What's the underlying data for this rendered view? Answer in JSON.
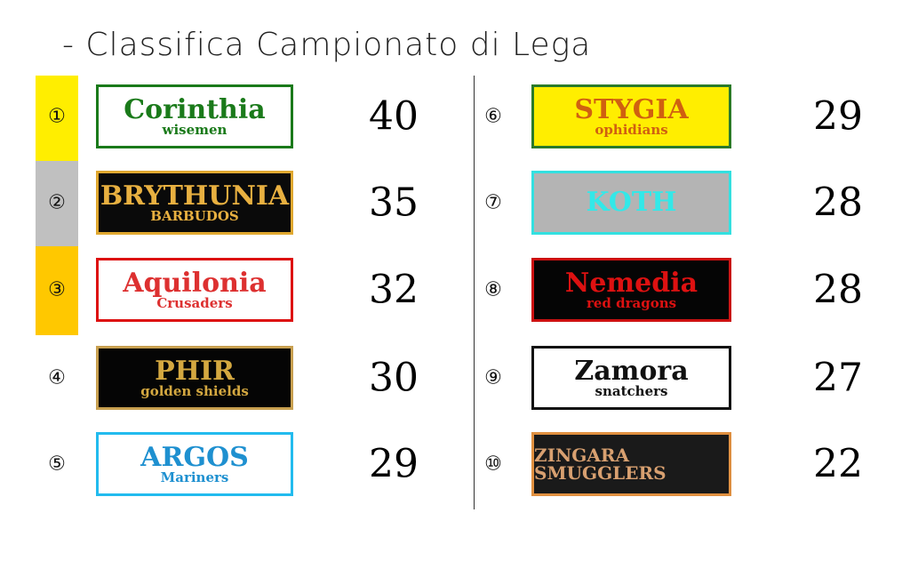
{
  "title": "- Classifica Campionato di Lega",
  "rank_colors": {
    "1": "#ffee00",
    "2": "#c0c0c0",
    "3": "#ffc800"
  },
  "standings": [
    {
      "rank": "①",
      "team": "Corinthia",
      "subtitle": "wisemen",
      "points": "40",
      "border": "#1a7a1a",
      "bg": "#ffffff",
      "color": "#1a7a1a"
    },
    {
      "rank": "②",
      "team": "BRYTHUNIA",
      "subtitle": "BARBUDOS",
      "points": "35",
      "border": "#e0a830",
      "bg": "#0a0a0a",
      "color": "#e8b040"
    },
    {
      "rank": "③",
      "team": "Aquilonia",
      "subtitle": "Crusaders",
      "points": "32",
      "border": "#dd1111",
      "bg": "#ffffff",
      "color": "#dd3030"
    },
    {
      "rank": "④",
      "team": "PHIR",
      "subtitle": "golden shields",
      "points": "30",
      "border": "#c8a050",
      "bg": "#050505",
      "color": "#d4a840"
    },
    {
      "rank": "⑤",
      "team": "ARGOS",
      "subtitle": "Mariners",
      "points": "29",
      "border": "#22bbee",
      "bg": "#ffffff",
      "color": "#1e90d0"
    },
    {
      "rank": "⑥",
      "team": "STYGIA",
      "subtitle": "ophidians",
      "points": "29",
      "border": "#2a7a2a",
      "bg": "#ffee00",
      "color": "#d06010"
    },
    {
      "rank": "⑦",
      "team": "KOTH",
      "subtitle": "",
      "points": "28",
      "border": "#33e0e0",
      "bg": "#b4b4b4",
      "color": "#33e8e8"
    },
    {
      "rank": "⑧",
      "team": "Nemedia",
      "subtitle": "red dragons",
      "points": "28",
      "border": "#cc1111",
      "bg": "#050505",
      "color": "#dd1111"
    },
    {
      "rank": "⑨",
      "team": "Zamora",
      "subtitle": "snatchers",
      "points": "27",
      "border": "#111111",
      "bg": "#ffffff",
      "color": "#111111"
    },
    {
      "rank": "⑩",
      "team": "ZINGARA SMUGGLERS",
      "subtitle": "",
      "points": "22",
      "border": "#e09040",
      "bg": "#1a1a1a",
      "color": "#d8a070"
    }
  ]
}
